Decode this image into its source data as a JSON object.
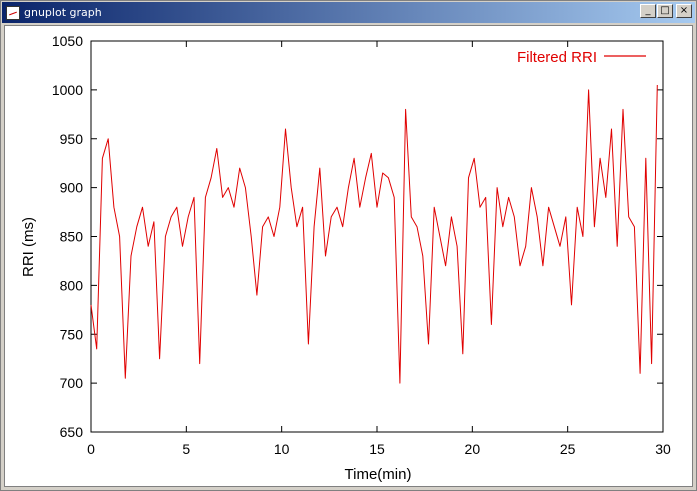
{
  "window": {
    "title": "gnuplot graph",
    "buttons": {
      "minimize": "_",
      "maximize": "□",
      "close": "×"
    }
  },
  "chart_data": {
    "type": "line",
    "title": "",
    "xlabel": "Time(min)",
    "ylabel": "RRI (ms)",
    "xlim": [
      0,
      30
    ],
    "ylim": [
      650,
      1050
    ],
    "xticks": [
      0,
      5,
      10,
      15,
      20,
      25,
      30
    ],
    "yticks": [
      650,
      700,
      750,
      800,
      850,
      900,
      950,
      1000,
      1050
    ],
    "grid": false,
    "legend_position": "top-right",
    "series": [
      {
        "name": "Filtered RRI",
        "color": "#e00000",
        "x": [
          0.0,
          0.3,
          0.6,
          0.9,
          1.2,
          1.5,
          1.8,
          2.1,
          2.4,
          2.7,
          3.0,
          3.3,
          3.6,
          3.9,
          4.2,
          4.5,
          4.8,
          5.1,
          5.4,
          5.7,
          6.0,
          6.3,
          6.6,
          6.9,
          7.2,
          7.5,
          7.8,
          8.1,
          8.4,
          8.7,
          9.0,
          9.3,
          9.6,
          9.9,
          10.2,
          10.5,
          10.8,
          11.1,
          11.4,
          11.7,
          12.0,
          12.3,
          12.6,
          12.9,
          13.2,
          13.5,
          13.8,
          14.1,
          14.4,
          14.7,
          15.0,
          15.3,
          15.6,
          15.9,
          16.2,
          16.5,
          16.8,
          17.1,
          17.4,
          17.7,
          18.0,
          18.3,
          18.6,
          18.9,
          19.2,
          19.5,
          19.8,
          20.1,
          20.4,
          20.7,
          21.0,
          21.3,
          21.6,
          21.9,
          22.2,
          22.5,
          22.8,
          23.1,
          23.4,
          23.7,
          24.0,
          24.3,
          24.6,
          24.9,
          25.2,
          25.5,
          25.8,
          26.1,
          26.4,
          26.7,
          27.0,
          27.3,
          27.6,
          27.9,
          28.2,
          28.5,
          28.8,
          29.1,
          29.4,
          29.7
        ],
        "y": [
          780,
          735,
          930,
          950,
          880,
          850,
          705,
          830,
          860,
          880,
          840,
          865,
          725,
          850,
          870,
          880,
          840,
          870,
          890,
          720,
          890,
          910,
          940,
          890,
          900,
          880,
          920,
          900,
          850,
          790,
          860,
          870,
          850,
          880,
          960,
          900,
          860,
          880,
          740,
          860,
          920,
          830,
          870,
          880,
          860,
          900,
          930,
          880,
          910,
          935,
          880,
          915,
          910,
          890,
          700,
          980,
          870,
          860,
          830,
          740,
          880,
          850,
          820,
          870,
          840,
          730,
          910,
          930,
          880,
          890,
          760,
          900,
          860,
          890,
          870,
          820,
          840,
          900,
          870,
          820,
          880,
          860,
          840,
          870,
          780,
          880,
          850,
          1000,
          860,
          930,
          890,
          960,
          840,
          980,
          870,
          860,
          710,
          930,
          720,
          1005
        ]
      }
    ]
  }
}
